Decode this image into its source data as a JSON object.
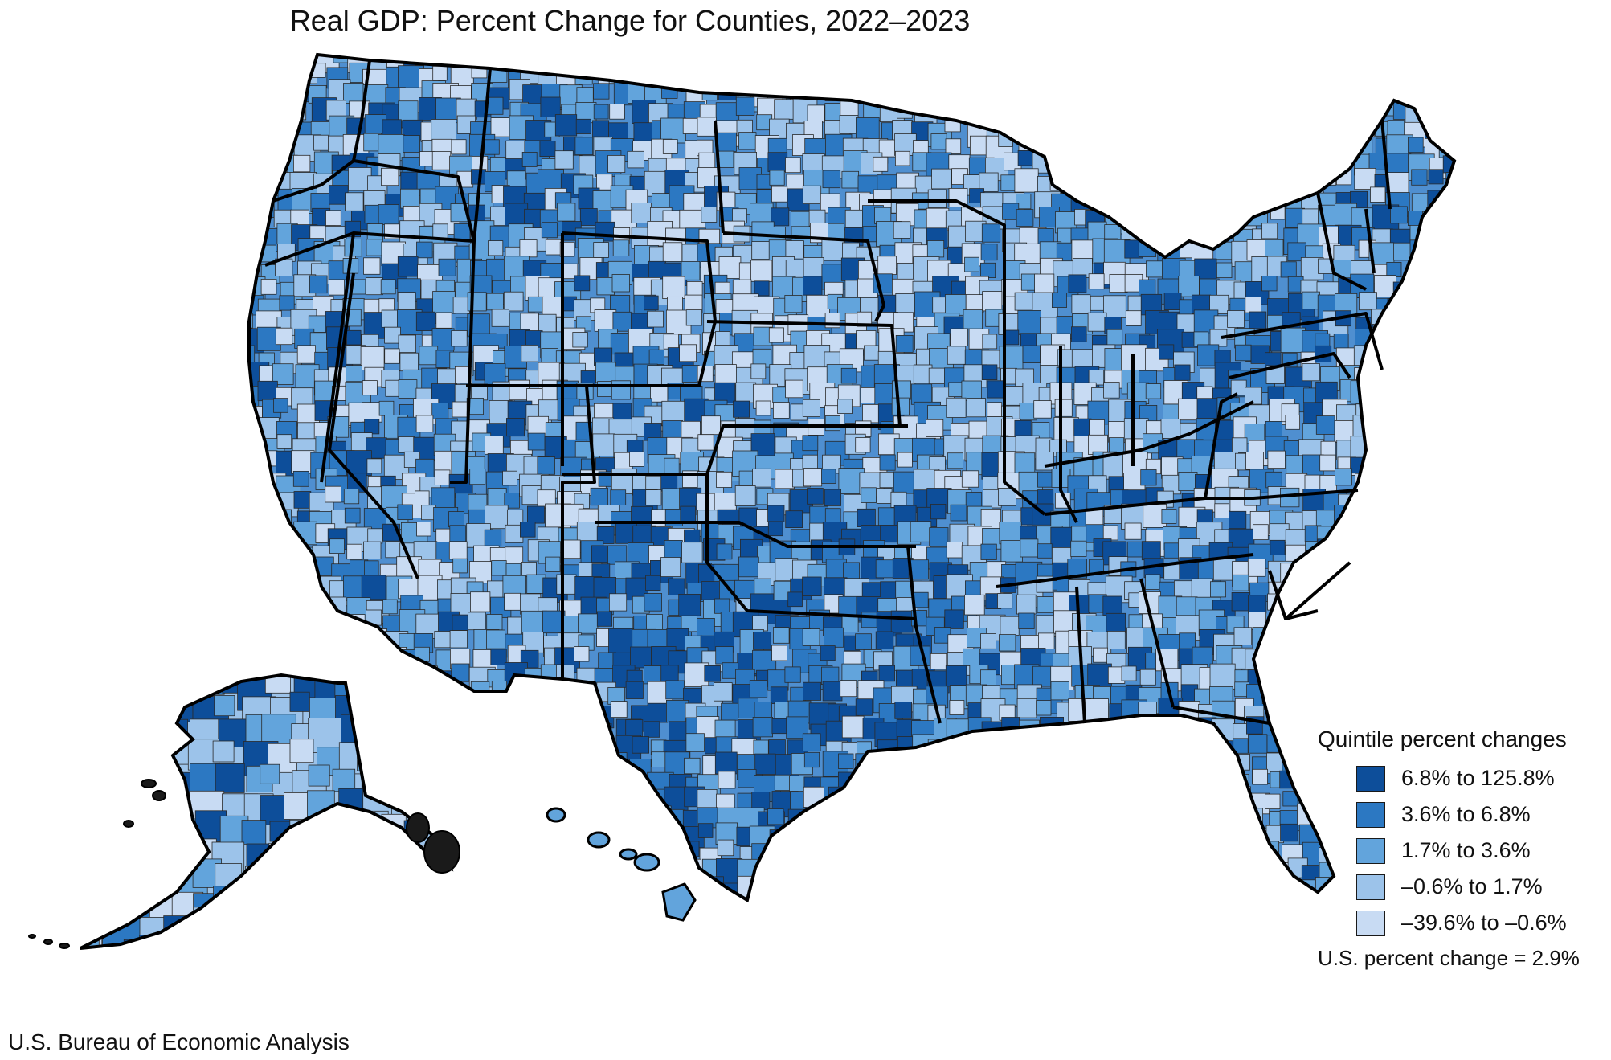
{
  "title": "Real GDP: Percent Change for Counties, 2022–2023",
  "legend": {
    "title": "Quintile percent changes",
    "items": [
      {
        "label": "6.8% to 125.8%",
        "color": "#0d4e9a"
      },
      {
        "label": "3.6% to 6.8%",
        "color": "#2c78c2"
      },
      {
        "label": "1.7% to 3.6%",
        "color": "#62a4dc"
      },
      {
        "label": "–0.6% to 1.7%",
        "color": "#9cc3ea"
      },
      {
        "label": "–39.6% to –0.6%",
        "color": "#c8dbf3"
      }
    ],
    "note": "U.S. percent change = 2.9%"
  },
  "source": "U.S. Bureau of Economic Analysis",
  "map": {
    "state_border_color": "#000000",
    "county_border_color": "#2a2a2a",
    "ocean_color": "#ffffff"
  }
}
